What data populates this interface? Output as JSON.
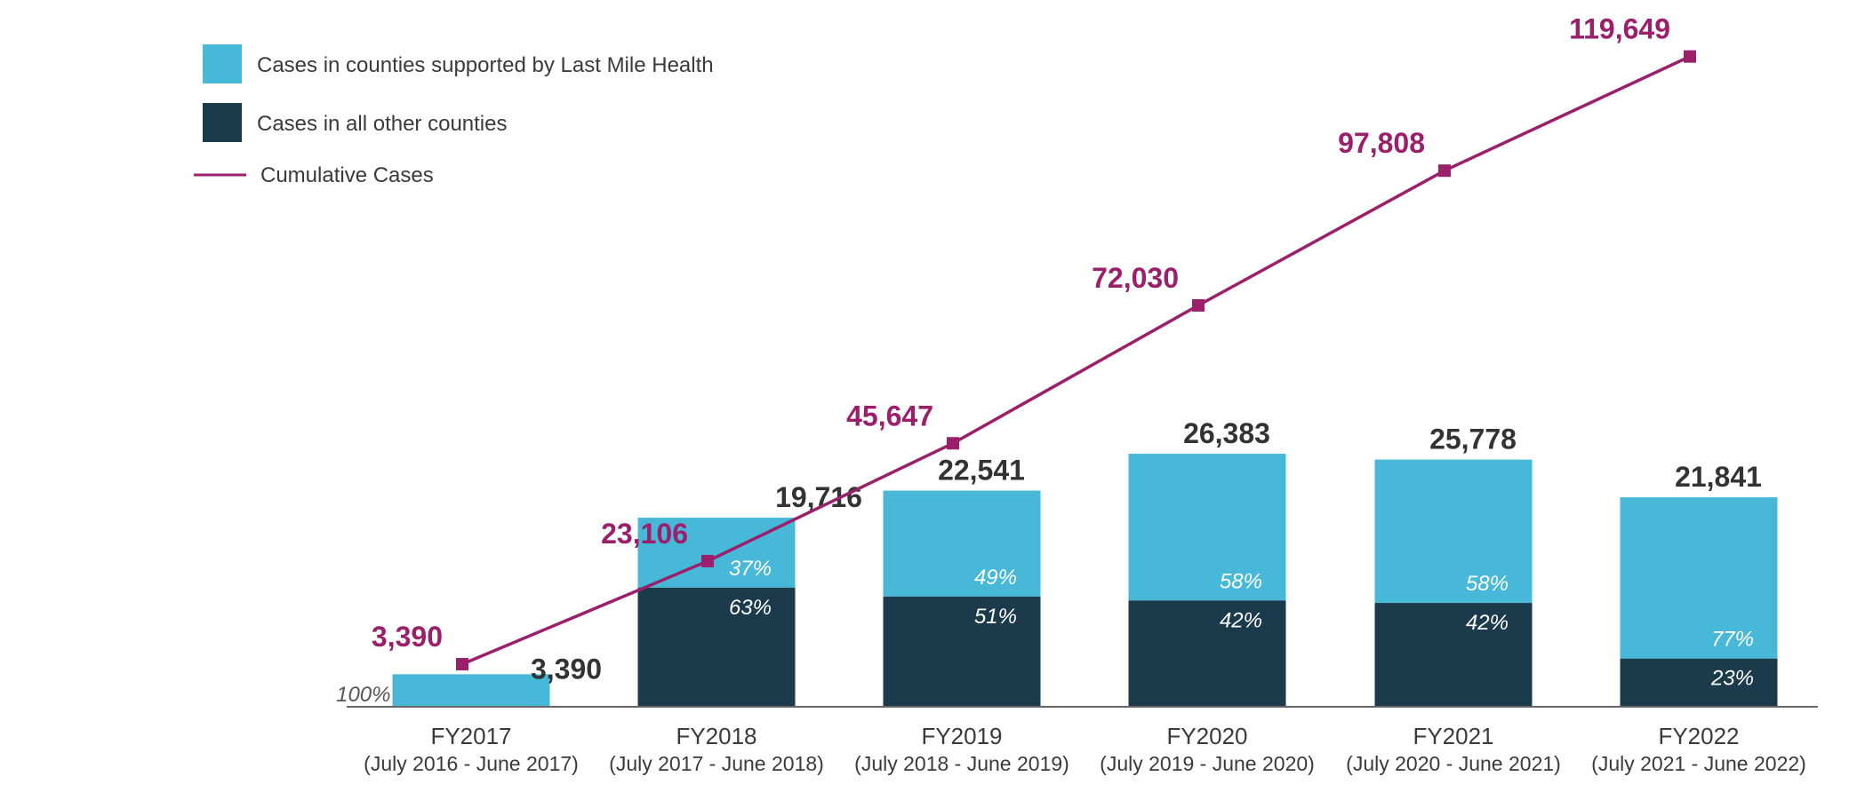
{
  "colors": {
    "lmh": "#47B8D8",
    "other": "#1B3A4B",
    "cumulative": "#9B1F6B",
    "axis": "#666666"
  },
  "legend": {
    "lmh_label": "Cases in counties supported by Last Mile Health",
    "other_label": "Cases in all other counties",
    "cumulative_label": "Cumulative Cases"
  },
  "chart_data": {
    "type": "bar",
    "stacked": true,
    "categories": [
      "FY2017",
      "FY2018",
      "FY2019",
      "FY2020",
      "FY2021",
      "FY2022"
    ],
    "category_sublabels": [
      "(July 2016 - June 2017)",
      "(July 2017 - June 2018)",
      "(July 2018 - June 2019)",
      "(July 2019 - June 2020)",
      "(July 2020 - June 2021)",
      "(July 2021 - June 2022)"
    ],
    "totals": [
      3390,
      19716,
      22541,
      26383,
      25778,
      21841
    ],
    "total_labels": [
      "3,390",
      "19,716",
      "22,541",
      "26,383",
      "25,778",
      "21,841"
    ],
    "series": [
      {
        "name": "Cases in counties supported by Last Mile Health",
        "share_pct": [
          100,
          37,
          49,
          58,
          58,
          77
        ],
        "labels": [
          "100%",
          "37%",
          "49%",
          "58%",
          "58%",
          "77%"
        ]
      },
      {
        "name": "Cases in all other counties",
        "share_pct": [
          0,
          63,
          51,
          42,
          42,
          23
        ],
        "labels": [
          "",
          "63%",
          "51%",
          "42%",
          "42%",
          "23%"
        ]
      }
    ],
    "line_series": {
      "name": "Cumulative Cases",
      "values": [
        3390,
        23106,
        45647,
        72030,
        97808,
        119649
      ],
      "labels": [
        "3,390",
        "23,106",
        "45,647",
        "72,030",
        "97,808",
        "119,649"
      ]
    },
    "bar_axis_max": 50000,
    "line_axis_max": 124000,
    "legend_position": "top-left",
    "grid": false
  }
}
